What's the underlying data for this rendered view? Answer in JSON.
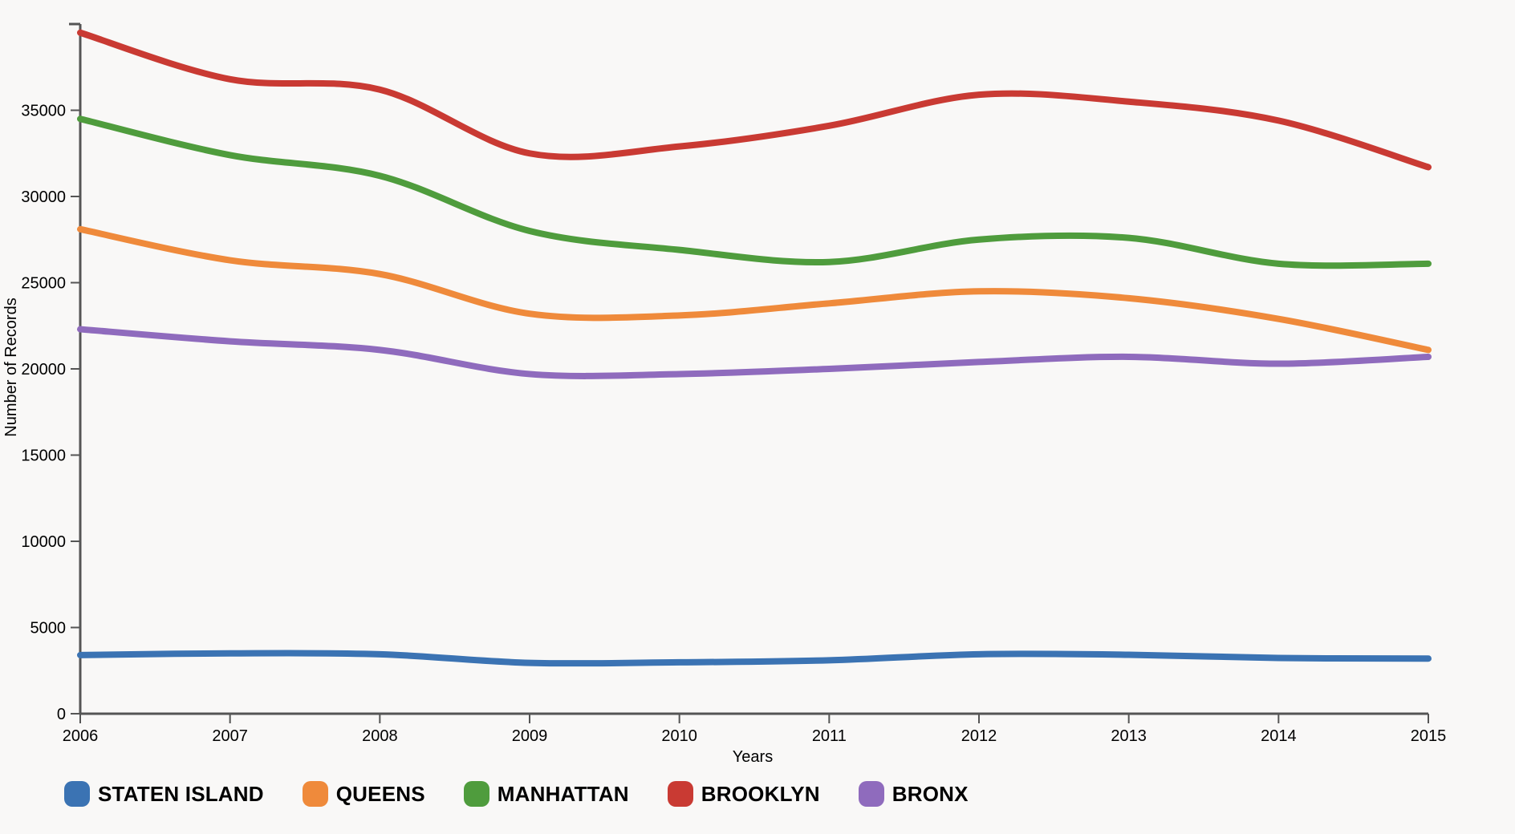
{
  "chart_data": {
    "type": "line",
    "xlabel": "Years",
    "ylabel": "Number of Records",
    "x": [
      "2006",
      "2007",
      "2008",
      "2009",
      "2010",
      "2011",
      "2012",
      "2013",
      "2014",
      "2015"
    ],
    "xlim": [
      2006,
      2015
    ],
    "ylim": [
      0,
      40000
    ],
    "yticks": [
      0,
      5000,
      10000,
      15000,
      20000,
      25000,
      30000,
      35000
    ],
    "grid": false,
    "legend": "bottom-left",
    "series": [
      {
        "name": "STATEN ISLAND",
        "color": "#3b73b3",
        "values": [
          3400,
          3500,
          3450,
          2950,
          2980,
          3100,
          3450,
          3420,
          3230,
          3200
        ]
      },
      {
        "name": "QUEENS",
        "color": "#ef8a3b",
        "values": [
          28100,
          26300,
          25500,
          23200,
          23100,
          23800,
          24500,
          24100,
          22900,
          21100
        ]
      },
      {
        "name": "MANHATTAN",
        "color": "#4f9c3d",
        "values": [
          34500,
          32400,
          31200,
          28000,
          26900,
          26200,
          27500,
          27600,
          26100,
          26100
        ]
      },
      {
        "name": "BROOKLYN",
        "color": "#c93a33",
        "values": [
          39500,
          36800,
          36200,
          32500,
          32900,
          34100,
          35900,
          35500,
          34400,
          31700
        ]
      },
      {
        "name": "BRONX",
        "color": "#8f6bbd",
        "values": [
          22300,
          21600,
          21100,
          19700,
          19700,
          20000,
          20400,
          20700,
          20300,
          20700
        ]
      }
    ]
  }
}
